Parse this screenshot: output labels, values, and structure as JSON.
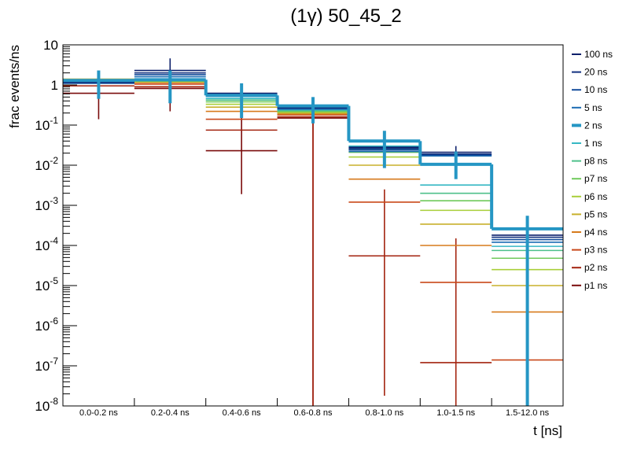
{
  "chart_data": {
    "type": "step-histogram",
    "title": "(1γ) 50_45_2",
    "xlabel": "t [ns]",
    "ylabel": "frac events/ns",
    "yscale": "log",
    "ylim": [
      1e-08,
      10
    ],
    "grid": false,
    "legend_position": "right",
    "categories": [
      "0.0-0.2 ns",
      "0.2-0.4 ns",
      "0.4-0.6 ns",
      "0.6-0.8 ns",
      "0.8-1.0 ns",
      "1.0-1.5 ns",
      "1.5-12.0 ns"
    ],
    "ytick_labels": {
      "major": [
        {
          "value": 1e-08,
          "mant": "10",
          "exp": "-8"
        },
        {
          "value": 1e-07,
          "mant": "10",
          "exp": "-7"
        },
        {
          "value": 1e-06,
          "mant": "10",
          "exp": "-6"
        },
        {
          "value": 1e-05,
          "mant": "10",
          "exp": "-5"
        },
        {
          "value": 0.0001,
          "mant": "10",
          "exp": "-4"
        },
        {
          "value": 0.001,
          "mant": "10",
          "exp": "-3"
        },
        {
          "value": 0.01,
          "mant": "10",
          "exp": "-2"
        },
        {
          "value": 0.1,
          "mant": "10",
          "exp": "-1"
        },
        {
          "value": 1,
          "mant": "1",
          "exp": ""
        },
        {
          "value": 10,
          "mant": "10",
          "exp": ""
        }
      ]
    },
    "series": [
      {
        "name": "100 ns",
        "color": "#0b1f6b",
        "values": [
          1.2,
          2.3,
          0.62,
          0.28,
          0.028,
          0.021,
          0.00018
        ],
        "err_lo": [
          null,
          1.05,
          null,
          null,
          null,
          0.012,
          null
        ],
        "err_hi": [
          null,
          4.6,
          null,
          null,
          null,
          0.03,
          null
        ]
      },
      {
        "name": "20 ns",
        "color": "#12307f",
        "values": [
          1.15,
          2.0,
          0.58,
          0.27,
          0.026,
          0.019,
          0.00016
        ],
        "err_lo": [],
        "err_hi": []
      },
      {
        "name": "10 ns",
        "color": "#154e9c",
        "values": [
          1.12,
          1.8,
          0.55,
          0.26,
          0.024,
          0.018,
          0.00014
        ],
        "err_lo": [],
        "err_hi": []
      },
      {
        "name": "5 ns",
        "color": "#1a6bb3",
        "values": [
          1.1,
          1.6,
          0.52,
          0.25,
          0.022,
          0.017,
          0.00012
        ],
        "err_lo": [],
        "err_hi": []
      },
      {
        "name": "2 ns",
        "color": "#2596c4",
        "emph": true,
        "values": [
          1.3,
          1.35,
          0.55,
          0.3,
          0.04,
          0.0105,
          0.00026
        ],
        "err_lo": [
          0.45,
          0.35,
          0.15,
          0.11,
          0.0085,
          0.0045,
          1e-08
        ],
        "err_hi": [
          2.3,
          2.3,
          1.1,
          0.5,
          0.072,
          0.022,
          0.00055
        ]
      },
      {
        "name": "1 ns",
        "color": "#36b8c4",
        "values": [
          1.25,
          1.3,
          0.46,
          0.24,
          0.03,
          0.0032,
          9.5e-05
        ],
        "err_lo": [],
        "err_hi": []
      },
      {
        "name": "p8 ns",
        "color": "#4ec08a",
        "values": [
          1.28,
          1.28,
          0.42,
          0.23,
          0.025,
          0.002,
          7.5e-05
        ],
        "err_lo": [],
        "err_hi": []
      },
      {
        "name": "p7 ns",
        "color": "#6fc95b",
        "values": [
          1.3,
          1.25,
          0.38,
          0.22,
          0.021,
          0.0013,
          4.8e-05
        ],
        "err_lo": [],
        "err_hi": []
      },
      {
        "name": "p6 ns",
        "color": "#a9cf3a",
        "values": [
          1.35,
          1.22,
          0.33,
          0.21,
          0.016,
          0.00075,
          2.5e-05
        ],
        "err_lo": [],
        "err_hi": []
      },
      {
        "name": "p5 ns",
        "color": "#c8b02b",
        "values": [
          1.4,
          1.2,
          0.28,
          0.2,
          0.01,
          0.00034,
          1e-05
        ],
        "err_lo": [],
        "err_hi": []
      },
      {
        "name": "p4 ns",
        "color": "#d77a1c",
        "values": [
          1.38,
          1.15,
          0.22,
          0.19,
          0.0045,
          0.0001,
          2.2e-06
        ],
        "err_lo": [],
        "err_hi": []
      },
      {
        "name": "p3 ns",
        "color": "#c9481a",
        "values": [
          1.2,
          1.05,
          0.14,
          0.18,
          0.0012,
          1.2e-05,
          1.4e-07
        ],
        "err_lo": [],
        "err_hi": []
      },
      {
        "name": "p2 ns",
        "color": "#a3230f",
        "values": [
          0.95,
          0.9,
          0.075,
          0.16,
          5.5e-05,
          1.2e-07,
          null
        ],
        "err_lo": [
          null,
          null,
          null,
          1e-08,
          1.8e-08,
          1e-08,
          null
        ],
        "err_hi": [
          null,
          null,
          null,
          0.35,
          0.0025,
          0.00015,
          null
        ]
      },
      {
        "name": "p1 ns",
        "color": "#7a0b0b",
        "values": [
          0.62,
          0.82,
          0.023,
          0.15,
          null,
          null,
          null
        ],
        "err_lo": [
          0.14,
          0.22,
          0.0019,
          1e-08,
          null,
          null,
          null
        ],
        "err_hi": [
          2.0,
          2.0,
          0.15,
          0.3,
          null,
          null,
          null
        ]
      }
    ]
  }
}
